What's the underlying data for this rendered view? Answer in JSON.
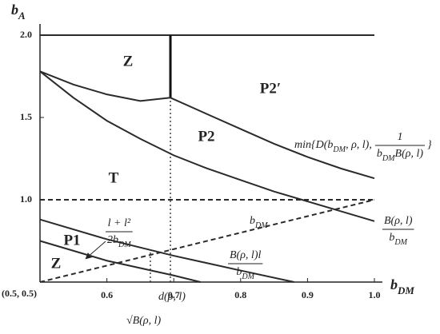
{
  "chart_data": {
    "type": "line",
    "x_label": [
      {
        "t": "b"
      },
      {
        "sub": "DM"
      }
    ],
    "y_label": [
      {
        "t": "b"
      },
      {
        "sub": "A"
      }
    ],
    "xlim": [
      0.5,
      1.0
    ],
    "ylim": [
      0.5,
      2.0
    ],
    "xticks": [
      0.6,
      0.7,
      0.8,
      0.9,
      {
        "value": 1,
        "label": "1.0"
      }
    ],
    "yticks": [
      {
        "value": 1,
        "label": "1.0"
      },
      1.5,
      {
        "value": 2,
        "label": "2.0"
      }
    ],
    "series": [
      {
        "color": "#2a2a2a",
        "style": "solid",
        "x": [
          0.5,
          1.0
        ],
        "values": [
          2.0,
          2.0
        ]
      },
      {
        "color": "#111111",
        "style": "thick",
        "x": [
          0.695,
          0.695
        ],
        "values": [
          1.62,
          2.0
        ]
      },
      {
        "color": "#2a2a2a",
        "style": "solid",
        "x": [
          0.5,
          0.55,
          0.6,
          0.65,
          0.695
        ],
        "values": [
          1.78,
          1.7,
          1.64,
          1.6,
          1.62
        ]
      },
      {
        "color": "#2a2a2a",
        "style": "solid",
        "x": [
          0.695,
          0.75,
          0.8,
          0.85,
          0.9,
          0.95,
          1.0
        ],
        "values": [
          1.62,
          1.52,
          1.43,
          1.34,
          1.26,
          1.19,
          1.13
        ]
      },
      {
        "color": "#2a2a2a",
        "style": "solid",
        "x": [
          0.5,
          0.55,
          0.6,
          0.65,
          0.7,
          0.75,
          0.8,
          0.85,
          0.9,
          0.95,
          1.0
        ],
        "values": [
          1.78,
          1.62,
          1.48,
          1.37,
          1.27,
          1.19,
          1.12,
          1.05,
          0.99,
          0.93,
          0.87
        ]
      },
      {
        "color": "#2a2a2a",
        "style": "dashed",
        "x": [
          0.5,
          1.0
        ],
        "values": [
          1.0,
          1.0
        ]
      },
      {
        "color": "#2a2a2a",
        "style": "dashed",
        "x": [
          0.5,
          1.0
        ],
        "values": [
          0.5,
          1.0
        ]
      },
      {
        "color": "#2a2a2a",
        "style": "solid",
        "x": [
          0.5,
          0.6,
          0.7,
          0.8,
          0.88
        ],
        "values": [
          0.88,
          0.76,
          0.66,
          0.57,
          0.5
        ]
      },
      {
        "color": "#2a2a2a",
        "style": "solid",
        "x": [
          0.5,
          0.6,
          0.7,
          0.74
        ],
        "values": [
          0.75,
          0.63,
          0.54,
          0.5
        ]
      },
      {
        "color": "#2a2a2a",
        "style": "dotted",
        "x": [
          0.695,
          0.695
        ],
        "values": [
          0.5,
          1.62
        ]
      },
      {
        "color": "#2a2a2a",
        "style": "dotted",
        "x": [
          0.665,
          0.665
        ],
        "values": [
          0.5,
          0.68
        ]
      }
    ],
    "regions": [
      "Z",
      "P2′",
      "P2",
      "T",
      "P1",
      "Z"
    ],
    "annotations": [
      {
        "pre": [
          {
            "t": "min{D(b"
          },
          {
            "sub": "DM"
          },
          {
            "t": ", ρ, l),"
          }
        ],
        "num": [
          {
            "t": "1"
          }
        ],
        "den": [
          {
            "t": "b"
          },
          {
            "sub": "DM"
          },
          {
            "t": "B(ρ, l)"
          }
        ],
        "post": [
          {
            "t": "}"
          }
        ]
      },
      {
        "num": [
          {
            "t": "B(ρ, l)"
          }
        ],
        "den": [
          {
            "t": "b"
          },
          {
            "sub": "DM"
          }
        ]
      },
      {
        "pre": [
          {
            "t": "b"
          },
          {
            "sub": "DM"
          }
        ]
      },
      {
        "num": [
          {
            "t": "l + l²"
          }
        ],
        "den": [
          {
            "t": "2b"
          },
          {
            "sub": "DM"
          }
        ]
      },
      {
        "num": [
          {
            "t": "B(ρ, l)l"
          }
        ],
        "den": [
          {
            "t": "b"
          },
          {
            "sub": "DM"
          }
        ]
      },
      {
        "pre": [
          {
            "t": "d(ρ, l)"
          }
        ]
      },
      {
        "pre": [
          {
            "t": "√B(ρ, l)"
          }
        ]
      },
      {
        "pre": [
          {
            "t": "(0.5, 0.5)"
          }
        ]
      }
    ]
  }
}
